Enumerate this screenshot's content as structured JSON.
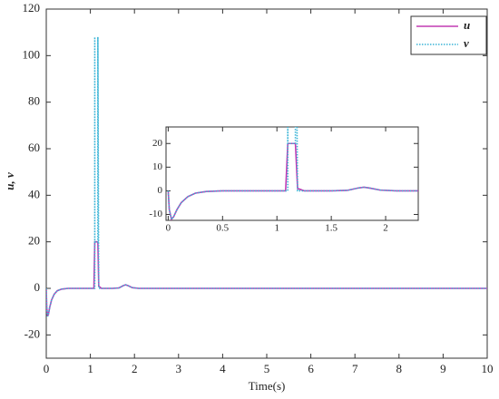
{
  "chart_data": [
    {
      "type": "line",
      "x_label": "Time(s)",
      "y_label": "u, v",
      "xlim": [
        0,
        10
      ],
      "ylim": [
        -30,
        120
      ],
      "xticks": [
        0,
        1,
        2,
        3,
        4,
        5,
        6,
        7,
        8,
        9,
        10
      ],
      "yticks": [
        -20,
        0,
        20,
        40,
        60,
        80,
        100,
        120
      ],
      "legend": "upper right",
      "series": [
        {
          "name": "u",
          "color": "#c23bb4",
          "dash": false,
          "x": [
            0,
            0.01,
            0.03,
            0.05,
            0.08,
            0.12,
            0.18,
            0.25,
            0.35,
            0.5,
            1.0,
            1.08,
            1.1,
            1.17,
            1.19,
            1.25,
            1.5,
            1.65,
            1.75,
            1.8,
            1.85,
            1.95,
            2.1,
            5,
            10
          ],
          "values": [
            0,
            -8,
            -12,
            -11,
            -8,
            -5,
            -2.5,
            -1,
            -0.3,
            0,
            0,
            0,
            20,
            20,
            1,
            0,
            0,
            0.2,
            1.2,
            1.5,
            1.2,
            0.3,
            0,
            0,
            0
          ]
        },
        {
          "name": "v",
          "color": "#3ab4d6",
          "dash": true,
          "x": [
            0,
            0.01,
            0.03,
            0.05,
            0.08,
            0.12,
            0.18,
            0.25,
            0.35,
            0.5,
            1.0,
            1.08,
            1.1,
            1.1,
            1.1,
            1.17,
            1.17,
            1.19,
            1.25,
            1.5,
            1.65,
            1.75,
            1.8,
            1.85,
            1.95,
            2.1,
            5,
            10
          ],
          "values": [
            0,
            -8,
            -12,
            -11,
            -8,
            -5,
            -2.5,
            -1,
            -0.3,
            0,
            0,
            0,
            0,
            108,
            20,
            20,
            108,
            0,
            0,
            0,
            0.2,
            1.2,
            1.5,
            1.2,
            0.3,
            0,
            0,
            0
          ]
        }
      ]
    },
    {
      "type": "inset",
      "xlim": [
        -0.02,
        2.3
      ],
      "ylim": [
        -12.5,
        27
      ],
      "xticks": [
        0,
        0.5,
        1,
        1.5,
        2
      ],
      "yticks": [
        -10,
        0,
        10,
        20
      ]
    }
  ]
}
